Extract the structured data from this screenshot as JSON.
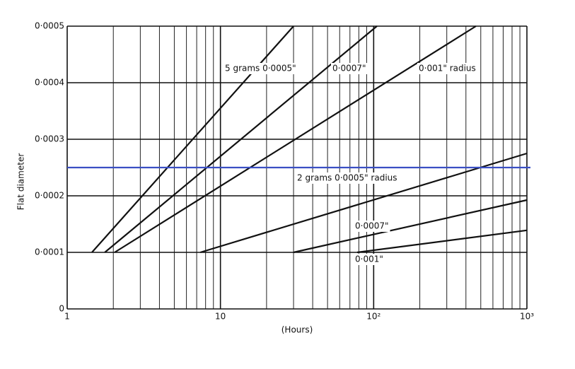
{
  "chart_data": {
    "type": "line",
    "xlabel": "(Hours)",
    "ylabel": "Flat diameter",
    "xscale": "log",
    "xlim": [
      1,
      1000
    ],
    "ylim": [
      0,
      0.0005
    ],
    "xticks": [
      1,
      10,
      {
        "value": 100,
        "label": "10²"
      },
      {
        "value": 1000,
        "label": "10³"
      }
    ],
    "xticks_minor": [
      2,
      3,
      4,
      5,
      6,
      7,
      8,
      9,
      20,
      30,
      40,
      50,
      60,
      70,
      80,
      90,
      200,
      300,
      400,
      500,
      600,
      700,
      800,
      900
    ],
    "yticks": [
      0,
      {
        "value": 0.0001,
        "label": "0·0001"
      },
      {
        "value": 0.0002,
        "label": "0·0002"
      },
      {
        "value": 0.0003,
        "label": "0·0003"
      },
      {
        "value": 0.0004,
        "label": "0·0004"
      },
      {
        "value": 0.0005,
        "label": "0·0005"
      }
    ],
    "grid": true,
    "series": [
      {
        "name": "5 grams 0·0005\"",
        "color": "#111111",
        "x": [
          1.45,
          30
        ],
        "values": [
          0.0001,
          0.0005
        ]
      },
      {
        "name": "0·0007\"",
        "color": "#111111",
        "x": [
          1.76,
          105
        ],
        "values": [
          0.0001,
          0.0005
        ]
      },
      {
        "name": "0·001\" radius",
        "color": "#111111",
        "x": [
          2.04,
          465
        ],
        "values": [
          0.0001,
          0.0005
        ]
      },
      {
        "name": "2 grams 0·0005\" radius",
        "color": "#111111",
        "x": [
          7.4,
          1000
        ],
        "values": [
          0.0001,
          0.000275
        ]
      },
      {
        "name": "0·0007\"",
        "color": "#111111",
        "x": [
          30,
          1000
        ],
        "values": [
          0.0001,
          0.0001925
        ]
      },
      {
        "name": "0·001\"",
        "color": "#111111",
        "x": [
          78,
          1000
        ],
        "values": [
          0.0001,
          0.000139
        ]
      }
    ],
    "reference_line": {
      "value": 0.00025,
      "color": "#3a4fc4"
    }
  }
}
